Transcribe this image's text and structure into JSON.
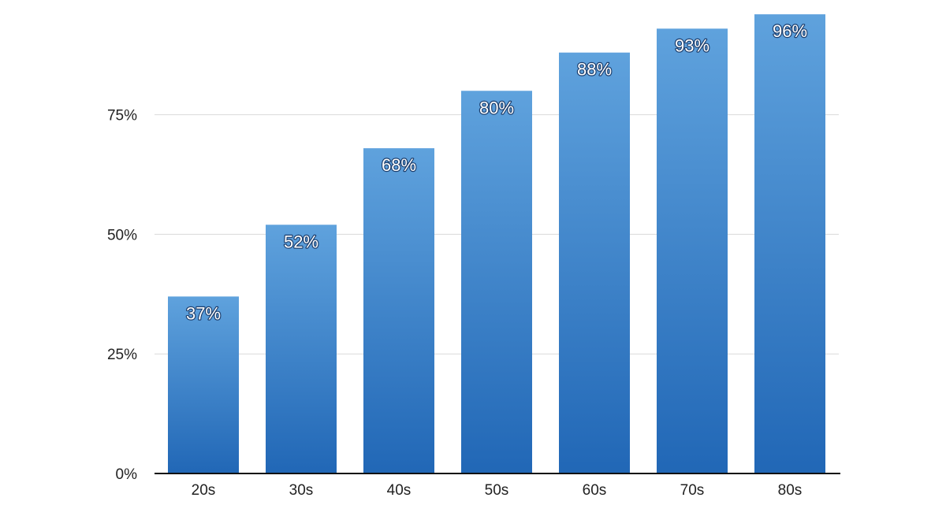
{
  "chart_data": {
    "type": "bar",
    "title": "",
    "xlabel": "",
    "ylabel": "",
    "categories": [
      "20s",
      "30s",
      "40s",
      "50s",
      "60s",
      "70s",
      "80s"
    ],
    "values": [
      37,
      52,
      68,
      80,
      88,
      93,
      96
    ],
    "data_labels": [
      "37%",
      "52%",
      "68%",
      "80%",
      "88%",
      "93%",
      "96%"
    ],
    "ylim": [
      0,
      98
    ],
    "y_ticks": [
      0,
      25,
      50,
      75
    ],
    "y_tick_labels": [
      "0%",
      "25%",
      "50%",
      "75%"
    ],
    "grid": true,
    "legend": "none",
    "colors": {
      "bar_top": "#5fa2dd",
      "bar_bottom": "#2167b6",
      "gridline": "#d9d9d9",
      "axis": "#111111",
      "label_outline": "#1d3f6e"
    }
  }
}
